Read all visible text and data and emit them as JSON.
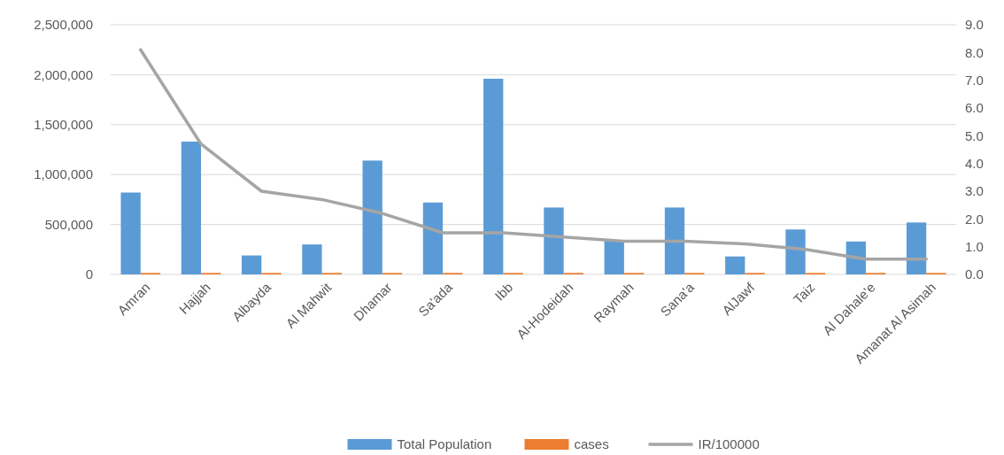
{
  "chart_data": {
    "type": "bar",
    "categories": [
      "Amran",
      "Hajjah",
      "Albayda",
      "Al Mahwit",
      "Dhamar",
      "Sa'ada",
      "Ibb",
      "Al-Hodeidah",
      "Raymah",
      "Sana'a",
      "AlJawf",
      "Taiz",
      "Al Dahale'e",
      "Amanat Al Asimah"
    ],
    "series": [
      {
        "name": "Total Population",
        "color": "#5b9bd5",
        "values": [
          820000,
          1330000,
          190000,
          300000,
          1140000,
          720000,
          1960000,
          670000,
          340000,
          670000,
          180000,
          450000,
          330000,
          520000
        ]
      },
      {
        "name": "cases",
        "color": "#ed7d31",
        "values": [
          15000,
          15000,
          15000,
          15000,
          15000,
          15000,
          15000,
          15000,
          15000,
          15000,
          15000,
          15000,
          15000,
          15000
        ]
      },
      {
        "name": "IR/100000",
        "color": "#a5a5a5",
        "type": "line",
        "axis": "y2",
        "values": [
          8.1,
          4.7,
          3.0,
          2.7,
          2.2,
          1.5,
          1.5,
          1.35,
          1.2,
          1.2,
          1.1,
          0.9,
          0.55,
          0.55
        ]
      }
    ],
    "ylim": [
      0,
      2500000
    ],
    "yticks": [
      {
        "value": 0,
        "label": "0"
      },
      {
        "value": 500000,
        "label": "500,000"
      },
      {
        "value": 1000000,
        "label": "1,000,000"
      },
      {
        "value": 1500000,
        "label": "1,500,000"
      },
      {
        "value": 2000000,
        "label": "2,000,000"
      },
      {
        "value": 2500000,
        "label": "2,500,000"
      }
    ],
    "y2lim": [
      0,
      9
    ],
    "y2ticks": [
      {
        "value": 0,
        "label": "0.0"
      },
      {
        "value": 1,
        "label": "1.0"
      },
      {
        "value": 2,
        "label": "2.0"
      },
      {
        "value": 3,
        "label": "3.0"
      },
      {
        "value": 4,
        "label": "4.0"
      },
      {
        "value": 5,
        "label": "5.0"
      },
      {
        "value": 6,
        "label": "6.0"
      },
      {
        "value": 7,
        "label": "7.0"
      },
      {
        "value": 8,
        "label": "8.0"
      },
      {
        "value": 9,
        "label": "9.0"
      }
    ],
    "grid": "y",
    "legend": "bottom"
  }
}
